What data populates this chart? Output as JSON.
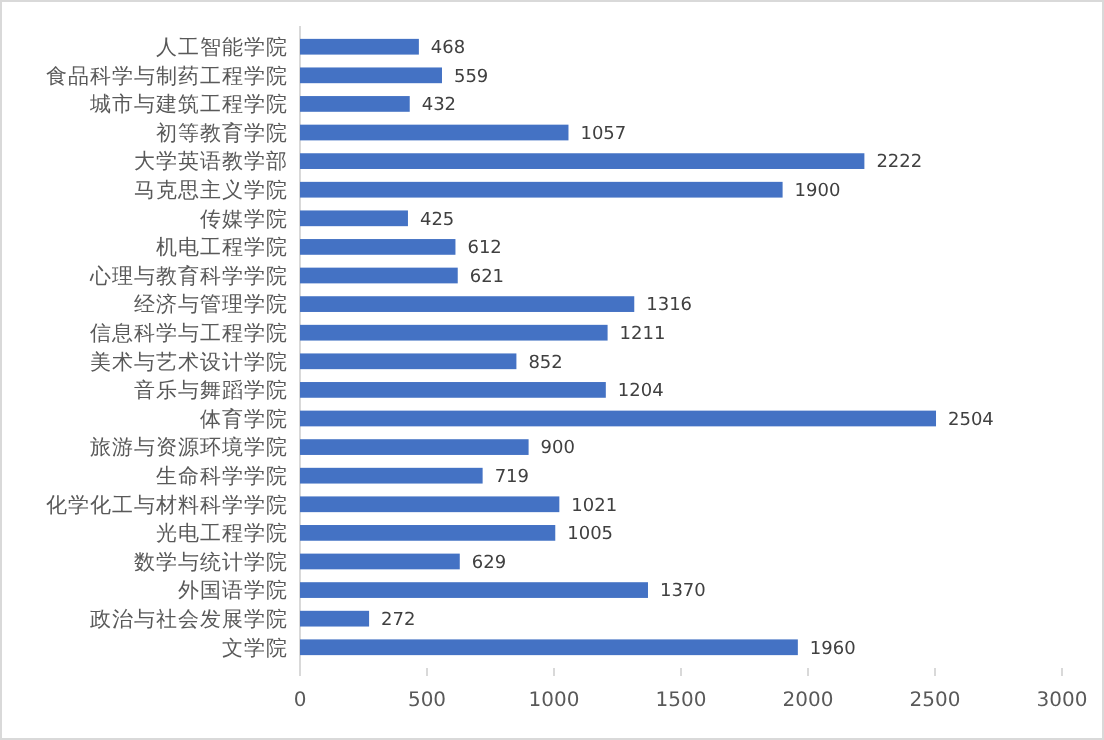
{
  "chart_data": {
    "type": "bar",
    "orientation": "horizontal",
    "categories": [
      "人工智能学院",
      "食品科学与制药工程学院",
      "城市与建筑工程学院",
      "初等教育学院",
      "大学英语教学部",
      "马克思主义学院",
      "传媒学院",
      "机电工程学院",
      "心理与教育科学学院",
      "经济与管理学院",
      "信息科学与工程学院",
      "美术与艺术设计学院",
      "音乐与舞蹈学院",
      "体育学院",
      "旅游与资源环境学院",
      "生命科学学院",
      "化学化工与材料科学学院",
      "光电工程学院",
      "数学与统计学院",
      "外国语学院",
      "政治与社会发展学院",
      "文学院"
    ],
    "values": [
      468,
      559,
      432,
      1057,
      2222,
      1900,
      425,
      612,
      621,
      1316,
      1211,
      852,
      1204,
      2504,
      900,
      719,
      1021,
      1005,
      629,
      1370,
      272,
      1960
    ],
    "color": "#4472c4",
    "xlim": [
      0,
      3000
    ],
    "xticks": [
      0,
      500,
      1000,
      1500,
      2000,
      2500,
      3000
    ],
    "data_labels": true,
    "grid": false
  }
}
